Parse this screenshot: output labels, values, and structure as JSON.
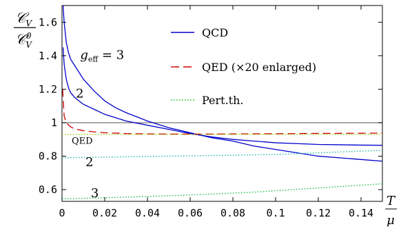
{
  "chart_data": {
    "type": "line",
    "xlim": [
      0,
      0.15
    ],
    "ylim": [
      0.53,
      1.7
    ],
    "x_ticks": [
      0,
      0.02,
      0.04,
      0.06,
      0.08,
      0.1,
      0.12,
      0.14
    ],
    "x_tick_labels": [
      "0",
      "0.02",
      "0.04",
      "0.06",
      "0.08",
      "0.1",
      "0.12",
      "0.14"
    ],
    "y_ticks": [
      0.6,
      0.8,
      1.0,
      1.2,
      1.4,
      1.6
    ],
    "y_tick_labels": [
      "0.6",
      "0.8",
      "1",
      "1.2",
      "1.4",
      "1.6"
    ],
    "ylabel_top": "𝒞",
    "ylabel_top_sub": "V",
    "ylabel_bottom": "𝒞",
    "ylabel_bottom_sub": "V",
    "ylabel_bottom_sup": "0",
    "xlabel_num": "T",
    "xlabel_den": "μ",
    "reference_line": {
      "y": 1.0,
      "color": "#808080"
    },
    "legend": [
      {
        "label": "QCD",
        "color": "#0000cc",
        "style": "solid"
      },
      {
        "label": "QED (×20 enlarged)",
        "color": "#cc0000",
        "style": "dashed"
      },
      {
        "label": "Pert.th.",
        "color": "#22bb22",
        "style": "dotted"
      }
    ],
    "series": [
      {
        "name": "QCD g_eff = 3",
        "color": "#0000cc",
        "style": "solid",
        "x": [
          0.0005,
          0.001,
          0.002,
          0.003,
          0.004,
          0.006,
          0.008,
          0.01,
          0.015,
          0.02,
          0.025,
          0.03,
          0.04,
          0.05,
          0.06,
          0.07,
          0.08,
          0.09,
          0.1,
          0.11,
          0.12,
          0.13,
          0.14,
          0.15
        ],
        "values": [
          1.7,
          1.6,
          1.48,
          1.42,
          1.38,
          1.34,
          1.3,
          1.26,
          1.19,
          1.13,
          1.09,
          1.06,
          1.01,
          0.97,
          0.94,
          0.91,
          0.89,
          0.86,
          0.84,
          0.82,
          0.8,
          0.79,
          0.78,
          0.77
        ]
      },
      {
        "name": "QCD g_eff = 2",
        "color": "#0000cc",
        "style": "solid",
        "x": [
          0.0005,
          0.001,
          0.002,
          0.003,
          0.004,
          0.006,
          0.008,
          0.01,
          0.015,
          0.02,
          0.025,
          0.03,
          0.04,
          0.05,
          0.06,
          0.07,
          0.08,
          0.09,
          0.1,
          0.11,
          0.12,
          0.13,
          0.14,
          0.15
        ],
        "values": [
          1.45,
          1.35,
          1.26,
          1.21,
          1.18,
          1.15,
          1.13,
          1.11,
          1.08,
          1.05,
          1.03,
          1.01,
          0.985,
          0.96,
          0.935,
          0.915,
          0.9,
          0.89,
          0.88,
          0.875,
          0.87,
          0.868,
          0.866,
          0.865
        ]
      },
      {
        "name": "QED",
        "color": "#cc0000",
        "style": "dashed",
        "x": [
          0.0003,
          0.001,
          0.002,
          0.004,
          0.006,
          0.01,
          0.015,
          0.02,
          0.03,
          0.04,
          0.05,
          0.06,
          0.07,
          0.08,
          0.1,
          0.12,
          0.14,
          0.15
        ],
        "values": [
          1.2,
          1.04,
          1.0,
          0.975,
          0.963,
          0.952,
          0.945,
          0.94,
          0.935,
          0.933,
          0.932,
          0.932,
          0.932,
          0.933,
          0.934,
          0.936,
          0.937,
          0.938
        ]
      },
      {
        "name": "Pert.th. QED",
        "color": "#99cc00",
        "style": "dotted",
        "x": [
          0,
          0.15
        ],
        "values": [
          0.93,
          0.93
        ]
      },
      {
        "name": "Pert.th. 2",
        "color": "#22bbaa",
        "style": "dotted",
        "x": [
          0,
          0.05,
          0.1,
          0.15
        ],
        "values": [
          0.79,
          0.8,
          0.81,
          0.835
        ]
      },
      {
        "name": "Pert.th. 3",
        "color": "#22bb55",
        "style": "dotted",
        "x": [
          0,
          0.03,
          0.06,
          0.09,
          0.12,
          0.15
        ],
        "values": [
          0.545,
          0.555,
          0.568,
          0.585,
          0.61,
          0.635
        ]
      }
    ],
    "annotations": [
      {
        "text": "g",
        "sub": "eff",
        "suffix": " = 3",
        "color": "#0000cc",
        "x": 0.0085,
        "y": 1.38
      },
      {
        "text": "2",
        "color": "#0000cc",
        "x": 0.0065,
        "y": 1.15
      },
      {
        "text": "QED",
        "color": "#99cc00",
        "x": 0.0045,
        "y": 0.875
      },
      {
        "text": "2",
        "color": "#22bbaa",
        "x": 0.011,
        "y": 0.74
      },
      {
        "text": "3",
        "color": "#22bb55",
        "x": 0.0135,
        "y": 0.555
      }
    ]
  }
}
